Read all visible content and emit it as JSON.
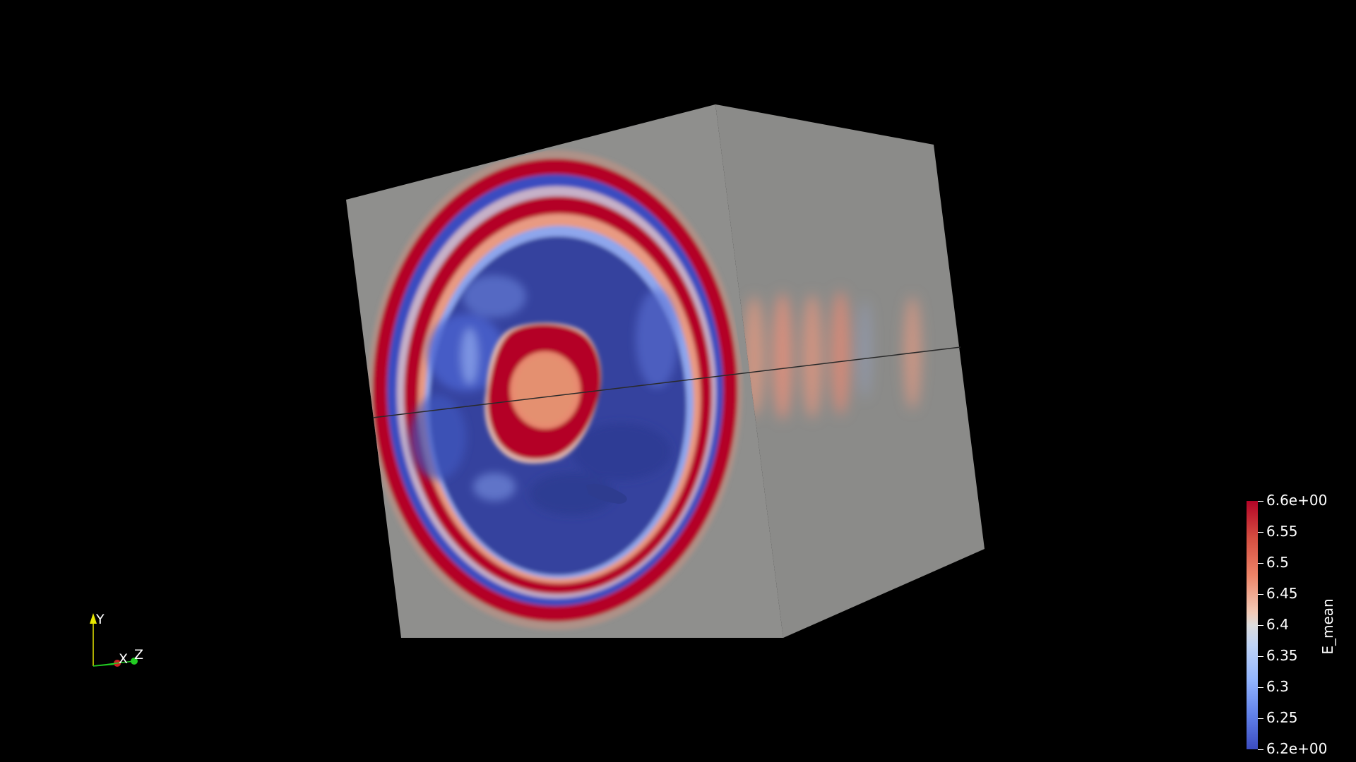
{
  "view": {
    "scalar_name": "E_mean",
    "colormap": "Cool to Warm",
    "background_color": "#000000",
    "surface_color": "#8e8e8c"
  },
  "colorbar": {
    "title": "E_mean",
    "range": [
      6.2,
      6.6
    ],
    "max_label": "6.6e+00",
    "min_label": "6.2e+00",
    "ticks": [
      {
        "value": 6.6,
        "label": "6.6e+00"
      },
      {
        "value": 6.55,
        "label": "6.55"
      },
      {
        "value": 6.5,
        "label": "6.5"
      },
      {
        "value": 6.45,
        "label": "6.45"
      },
      {
        "value": 6.4,
        "label": "6.4"
      },
      {
        "value": 6.35,
        "label": "6.35"
      },
      {
        "value": 6.3,
        "label": "6.3"
      },
      {
        "value": 6.25,
        "label": "6.25"
      },
      {
        "value": 6.2,
        "label": "6.2e+00"
      }
    ],
    "colors": {
      "high": "#b40426",
      "mid": "#dddcdc",
      "low": "#3b4cc0"
    }
  },
  "orientation_axes": {
    "y_label": "Y",
    "x_label": "X",
    "z_label": "Z",
    "y_color": "#e8e800",
    "x_color": "#cc2222",
    "z_color": "#22cc22"
  }
}
